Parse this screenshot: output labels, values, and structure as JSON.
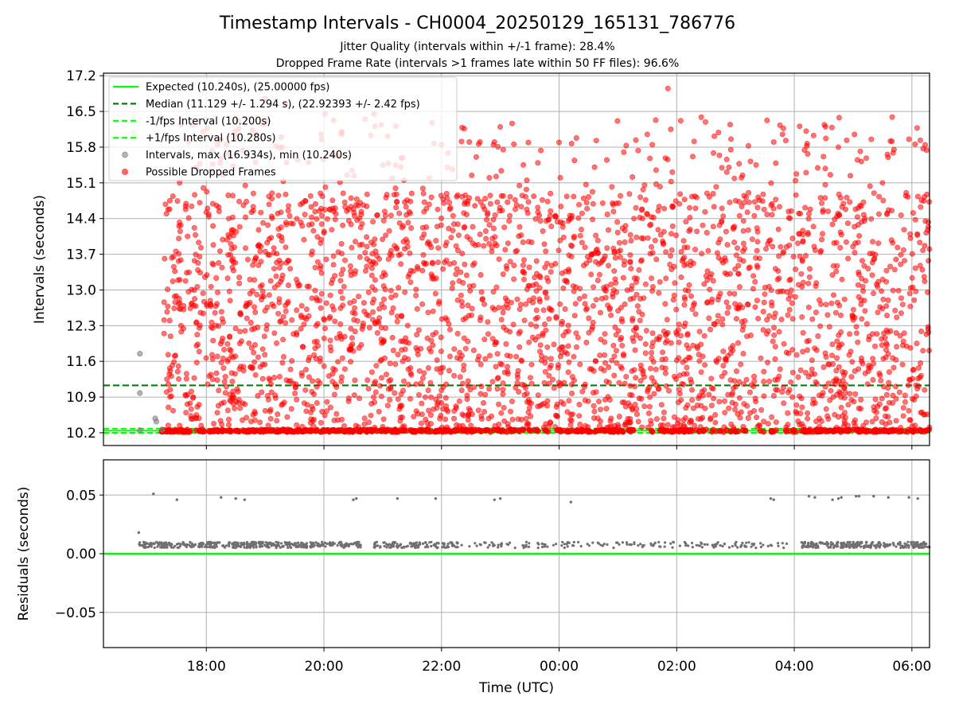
{
  "title": "Timestamp Intervals - CH0004_20250129_165131_786776",
  "subtitle_1": "Jitter Quality (intervals within +/-1 frame): 28.4%",
  "subtitle_2": "Dropped Frame Rate (intervals >1 frames late within 50 FF files): 96.6%",
  "colors": {
    "expected": "#00ff00",
    "median": "#008000",
    "jitter_bounds": "#00ff00",
    "intervals": "#808080",
    "dropped": "#ff0000",
    "grid": "#b0b0b0",
    "residuals": "#707070"
  },
  "chart_data": [
    {
      "type": "scatter",
      "panel": "intervals",
      "ylabel": "Intervals (seconds)",
      "xlabel": "",
      "x_unit": "hours since 00:00 UTC of 2025-01-29",
      "xlim": [
        16.25,
        30.3
      ],
      "ylim": [
        9.95,
        17.25
      ],
      "yticks": [
        "10.2",
        "10.9",
        "11.6",
        "12.3",
        "13.0",
        "13.7",
        "14.4",
        "15.1",
        "15.8",
        "16.5",
        "17.2"
      ],
      "ytick_values": [
        10.2,
        10.9,
        11.6,
        12.3,
        13.0,
        13.7,
        14.4,
        15.1,
        15.8,
        16.5,
        17.2
      ],
      "xticks": [
        "18:00",
        "20:00",
        "22:00",
        "00:00",
        "02:00",
        "04:00",
        "06:00"
      ],
      "xtick_values": [
        18,
        20,
        22,
        24,
        26,
        28,
        30
      ],
      "grid": true,
      "legend_position": "upper-left",
      "legend": [
        "Expected (10.240s), (25.00000 fps)",
        "Median (11.129 +/- 1.294 s), (22.92393 +/- 2.42 fps)",
        "-1/fps Interval (10.200s)",
        "+1/fps Interval (10.280s)",
        "Intervals, max (16.934s), min (10.240s)",
        "Possible Dropped Frames"
      ],
      "lines": {
        "expected": 10.24,
        "median": 11.129,
        "minus_one_fps": 10.2,
        "plus_one_fps": 10.28
      },
      "normal_intervals": [
        [
          16.87,
          11.75
        ],
        [
          16.87,
          10.98
        ],
        [
          16.87,
          10.25
        ],
        [
          17.13,
          10.48
        ],
        [
          17.15,
          10.42
        ],
        [
          17.25,
          10.26
        ]
      ],
      "dropped_points_sample": [
        [
          17.33,
          11.25
        ],
        [
          17.38,
          14.75
        ],
        [
          17.55,
          13.2
        ],
        [
          17.68,
          14.05
        ],
        [
          17.83,
          15.4
        ],
        [
          17.95,
          15.0
        ],
        [
          18.02,
          14.6
        ],
        [
          18.1,
          15.72
        ],
        [
          18.25,
          15.95
        ],
        [
          18.45,
          14.85
        ],
        [
          18.85,
          16.05
        ],
        [
          19.0,
          16.75
        ],
        [
          19.35,
          16.65
        ],
        [
          19.55,
          15.55
        ],
        [
          19.95,
          16.05
        ],
        [
          20.02,
          16.45
        ],
        [
          20.3,
          16.05
        ],
        [
          20.7,
          16.35
        ],
        [
          20.85,
          16.45
        ],
        [
          21.0,
          15.45
        ],
        [
          22.0,
          15.85
        ],
        [
          22.9,
          15.9
        ],
        [
          23.05,
          15.75
        ],
        [
          23.45,
          15.15
        ],
        [
          24.02,
          15.2
        ],
        [
          25.1,
          15.7
        ],
        [
          25.5,
          16.05
        ],
        [
          25.65,
          15.35
        ],
        [
          25.85,
          16.95
        ],
        [
          25.9,
          16.15
        ],
        [
          27.1,
          15.2
        ],
        [
          27.35,
          15.45
        ],
        [
          27.65,
          15.9
        ],
        [
          27.8,
          16.05
        ],
        [
          28.2,
          15.3
        ],
        [
          28.75,
          15.8
        ],
        [
          29.5,
          15.1
        ],
        [
          30.3,
          13.8
        ]
      ],
      "dropped_dense_region": {
        "x_range": [
          17.28,
          30.3
        ],
        "y_range": [
          10.3,
          14.9
        ]
      },
      "note_low_band": "continuous band of points at ~10.24 s across the full time range"
    },
    {
      "type": "scatter",
      "panel": "residuals",
      "ylabel": "Residuals (seconds)",
      "xlabel": "Time (UTC)",
      "xlim": [
        16.25,
        30.3
      ],
      "ylim": [
        -0.08,
        0.08
      ],
      "yticks": [
        "0.05",
        "0.00",
        "−0.05"
      ],
      "ytick_values": [
        0.05,
        0.0,
        -0.05
      ],
      "xticks": [
        "18:00",
        "20:00",
        "22:00",
        "00:00",
        "02:00",
        "04:00",
        "06:00"
      ],
      "xtick_values": [
        18,
        20,
        22,
        24,
        26,
        28,
        30
      ],
      "grid": true,
      "zero_line": 0.0,
      "outliers": [
        [
          16.85,
          0.018
        ],
        [
          17.1,
          0.051
        ],
        [
          17.5,
          0.046
        ],
        [
          18.25,
          0.048
        ],
        [
          18.5,
          0.047
        ],
        [
          18.65,
          0.046
        ],
        [
          20.5,
          0.046
        ],
        [
          20.55,
          0.047
        ],
        [
          21.25,
          0.047
        ],
        [
          21.9,
          0.047
        ],
        [
          22.9,
          0.046
        ],
        [
          23.0,
          0.047
        ],
        [
          24.2,
          0.044
        ],
        [
          27.6,
          0.047
        ],
        [
          27.65,
          0.046
        ],
        [
          28.25,
          0.049
        ],
        [
          28.35,
          0.048
        ],
        [
          28.65,
          0.046
        ],
        [
          28.75,
          0.047
        ],
        [
          28.8,
          0.048
        ],
        [
          29.05,
          0.049
        ],
        [
          29.1,
          0.049
        ],
        [
          29.35,
          0.049
        ],
        [
          29.6,
          0.048
        ],
        [
          29.95,
          0.048
        ],
        [
          30.1,
          0.047
        ]
      ],
      "main_band": {
        "x_range": [
          16.85,
          30.3
        ],
        "y_center": 0.0075,
        "y_spread": 0.0025
      },
      "main_band_gaps": [
        [
          20.65,
          20.85
        ],
        [
          22.35,
          22.45
        ],
        [
          25.95,
          26.05
        ],
        [
          27.9,
          28.1
        ]
      ]
    }
  ]
}
